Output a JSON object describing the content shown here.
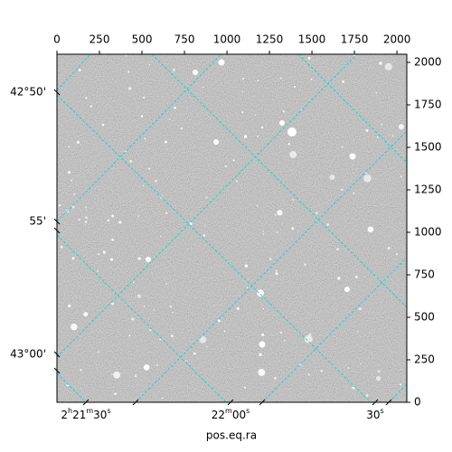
{
  "chart_data": {
    "type": "image",
    "xlabel": "pos.eq.ra",
    "xlim": [
      0,
      2058
    ],
    "xticks": [
      0,
      250,
      500,
      750,
      1000,
      1250,
      1500,
      1750,
      2000
    ],
    "ylim": [
      0,
      2048
    ],
    "yticks": [
      0,
      250,
      500,
      750,
      1000,
      1250,
      1500,
      1750,
      2000
    ],
    "ra_tick_labels": [
      [
        "2",
        "h",
        "21",
        "m",
        "30",
        "s"
      ],
      [
        "22",
        "m",
        "00",
        "s"
      ],
      [
        "30",
        "s"
      ]
    ],
    "dec_tick_labels": [
      "42°50'",
      "55'",
      "43°00'"
    ],
    "grid_color": "#22d3d3"
  }
}
